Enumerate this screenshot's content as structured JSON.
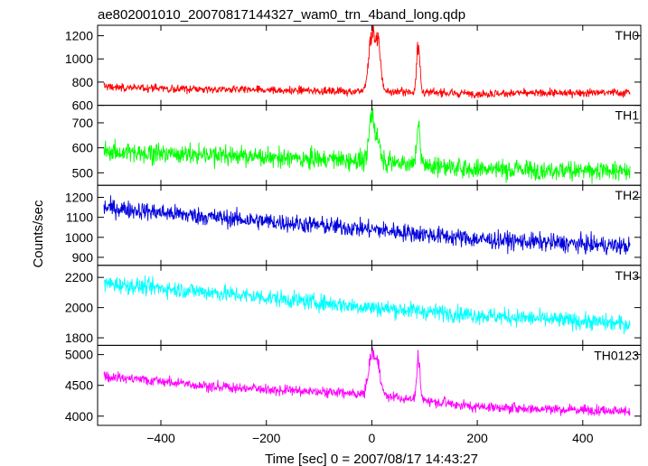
{
  "chart_data": {
    "type": "line",
    "title": "ae802001010_20070817144327_wam0_trn_4band_long.qdp",
    "xlabel": "Time [sec] 0 = 2007/08/17 14:43:27",
    "ylabel": "Counts/sec",
    "xlim": [
      -520,
      510
    ],
    "xticks": [
      -400,
      -200,
      0,
      200,
      400
    ],
    "xtick_labels": [
      "−400",
      "−200",
      "0",
      "200",
      "400"
    ],
    "x_start": -508,
    "x_end": 490,
    "panels": [
      {
        "name": "TH0",
        "color": "#ff0000",
        "ylim": [
          600,
          1290
        ],
        "yticks": [
          600,
          800,
          1000,
          1200
        ],
        "ytick_labels": [
          "600",
          "800",
          "1000",
          "1200"
        ],
        "trend": [
          [
            -508,
            760
          ],
          [
            -300,
            735
          ],
          [
            0,
            720
          ],
          [
            200,
            700
          ],
          [
            490,
            710
          ]
        ],
        "noise": 25,
        "peaks": [
          [
            0,
            1280,
            6
          ],
          [
            12,
            1150,
            5
          ],
          [
            88,
            1220,
            3
          ]
        ]
      },
      {
        "name": "TH1",
        "color": "#00ff00",
        "ylim": [
          450,
          770
        ],
        "yticks": [
          500,
          600,
          700
        ],
        "ytick_labels": [
          "500",
          "600",
          "700"
        ],
        "trend": [
          [
            -508,
            585
          ],
          [
            -300,
            570
          ],
          [
            0,
            545
          ],
          [
            200,
            515
          ],
          [
            490,
            505
          ]
        ],
        "noise": 28,
        "peaks": [
          [
            0,
            760,
            5
          ],
          [
            12,
            640,
            5
          ],
          [
            88,
            740,
            3
          ]
        ]
      },
      {
        "name": "TH2",
        "color": "#0000dd",
        "ylim": [
          860,
          1260
        ],
        "yticks": [
          900,
          1000,
          1100,
          1200
        ],
        "ytick_labels": [
          "900",
          "1000",
          "1100",
          "1200"
        ],
        "trend": [
          [
            -508,
            1150
          ],
          [
            -300,
            1100
          ],
          [
            0,
            1040
          ],
          [
            200,
            990
          ],
          [
            490,
            955
          ]
        ],
        "noise": 32,
        "peaks": []
      },
      {
        "name": "TH3",
        "color": "#00ffff",
        "ylim": [
          1750,
          2280
        ],
        "yticks": [
          1800,
          2000,
          2200
        ],
        "ytick_labels": [
          "1800",
          "2000",
          "2200"
        ],
        "trend": [
          [
            -508,
            2160
          ],
          [
            -300,
            2100
          ],
          [
            0,
            2000
          ],
          [
            200,
            1950
          ],
          [
            490,
            1890
          ]
        ],
        "noise": 40,
        "peaks": []
      },
      {
        "name": "TH0123",
        "color": "#ff00ff",
        "ylim": [
          3850,
          5150
        ],
        "yticks": [
          4000,
          4500,
          5000
        ],
        "ytick_labels": [
          "4000",
          "4500",
          "5000"
        ],
        "trend": [
          [
            -508,
            4650
          ],
          [
            -300,
            4480
          ],
          [
            0,
            4350
          ],
          [
            200,
            4150
          ],
          [
            490,
            4080
          ]
        ],
        "noise": 60,
        "peaks": [
          [
            0,
            5100,
            6
          ],
          [
            12,
            4850,
            5
          ],
          [
            88,
            5050,
            3
          ]
        ]
      }
    ]
  }
}
